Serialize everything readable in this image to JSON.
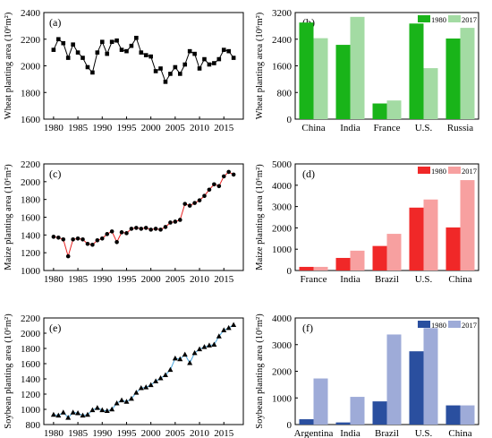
{
  "chart_data": [
    {
      "type": "line",
      "panel_label": "(a)",
      "ylabel": "Wheat planting area (10⁶m²)",
      "xlim": [
        1978,
        2019
      ],
      "ylim": [
        1600,
        2400
      ],
      "xticks": [
        "1980",
        "1985",
        "1990",
        "1995",
        "2000",
        "2005",
        "2010",
        "2015"
      ],
      "yticks": [
        "1600",
        "1800",
        "2000",
        "2200",
        "2400"
      ],
      "line_color": "#000000",
      "marker": "square",
      "marker_color": "#000000",
      "x": [
        1980,
        1981,
        1982,
        1983,
        1984,
        1985,
        1986,
        1987,
        1988,
        1989,
        1990,
        1991,
        1992,
        1993,
        1994,
        1995,
        1996,
        1997,
        1998,
        1999,
        2000,
        2001,
        2002,
        2003,
        2004,
        2005,
        2006,
        2007,
        2008,
        2009,
        2010,
        2011,
        2012,
        2013,
        2014,
        2015,
        2016,
        2017
      ],
      "y": [
        2120,
        2200,
        2170,
        2060,
        2160,
        2100,
        2060,
        1990,
        1950,
        2100,
        2180,
        2090,
        2180,
        2190,
        2120,
        2110,
        2150,
        2210,
        2100,
        2080,
        2070,
        1960,
        1980,
        1880,
        1940,
        1990,
        1940,
        2010,
        2110,
        2090,
        1980,
        2050,
        2010,
        2020,
        2050,
        2120,
        2110,
        2060
      ]
    },
    {
      "type": "bar",
      "panel_label": "(b)",
      "ylabel": "Wheat planting area (10⁶m²)",
      "categories": [
        "China",
        "India",
        "France",
        "U.S.",
        "Russia"
      ],
      "ylim": [
        0,
        3200
      ],
      "yticks": [
        "0",
        "800",
        "1600",
        "2400",
        "3200"
      ],
      "legend_position": "top-right",
      "series": [
        {
          "name": "1980",
          "color": "#19b419",
          "values": [
            2900,
            2230,
            470,
            2870,
            2420
          ]
        },
        {
          "name": "2017",
          "color": "#a3dba3",
          "values": [
            2430,
            3070,
            560,
            1530,
            2740
          ]
        }
      ]
    },
    {
      "type": "line",
      "panel_label": "(c)",
      "ylabel": "Maize planting area (10⁶m²)",
      "xlim": [
        1978,
        2019
      ],
      "ylim": [
        1000,
        2200
      ],
      "xticks": [
        "1980",
        "1985",
        "1990",
        "1995",
        "2000",
        "2005",
        "2010",
        "2015"
      ],
      "yticks": [
        "1000",
        "1200",
        "1400",
        "1600",
        "1800",
        "2000",
        "2200"
      ],
      "line_color": "#e82020",
      "marker": "circle",
      "marker_color": "#000000",
      "x": [
        1980,
        1981,
        1982,
        1983,
        1984,
        1985,
        1986,
        1987,
        1988,
        1989,
        1990,
        1991,
        1992,
        1993,
        1994,
        1995,
        1996,
        1997,
        1998,
        1999,
        2000,
        2001,
        2002,
        2003,
        2004,
        2005,
        2006,
        2007,
        2008,
        2009,
        2010,
        2011,
        2012,
        2013,
        2014,
        2015,
        2016,
        2017
      ],
      "y": [
        1380,
        1370,
        1350,
        1160,
        1350,
        1360,
        1350,
        1300,
        1290,
        1340,
        1360,
        1410,
        1440,
        1320,
        1430,
        1420,
        1470,
        1480,
        1470,
        1480,
        1460,
        1470,
        1460,
        1490,
        1540,
        1550,
        1570,
        1750,
        1730,
        1760,
        1790,
        1840,
        1910,
        1970,
        1950,
        2060,
        2110,
        2080
      ]
    },
    {
      "type": "bar",
      "panel_label": "(d)",
      "ylabel": "Maize planting area (10⁶m²)",
      "categories": [
        "France",
        "India",
        "Brazil",
        "U.S.",
        "China"
      ],
      "ylim": [
        0,
        5000
      ],
      "yticks": [
        "0",
        "1000",
        "2000",
        "3000",
        "4000",
        "5000"
      ],
      "legend_position": "top-right",
      "series": [
        {
          "name": "1980",
          "color": "#f02828",
          "values": [
            170,
            590,
            1150,
            2950,
            2020
          ]
        },
        {
          "name": "2017",
          "color": "#f7a0a0",
          "values": [
            170,
            930,
            1720,
            3330,
            4240
          ]
        }
      ]
    },
    {
      "type": "line",
      "panel_label": "(e)",
      "ylabel": "Soybean planting area (10⁶m²)",
      "xlim": [
        1978,
        2019
      ],
      "ylim": [
        800,
        2200
      ],
      "xticks": [
        "1980",
        "1985",
        "1990",
        "1995",
        "2000",
        "2005",
        "2010",
        "2015"
      ],
      "yticks": [
        "800",
        "1000",
        "1200",
        "1400",
        "1600",
        "1800",
        "2000",
        "2200"
      ],
      "line_color": "#4aa8e0",
      "marker": "triangle",
      "marker_color": "#000000",
      "x": [
        1980,
        1981,
        1982,
        1983,
        1984,
        1985,
        1986,
        1987,
        1988,
        1989,
        1990,
        1991,
        1992,
        1993,
        1994,
        1995,
        1996,
        1997,
        1998,
        1999,
        2000,
        2001,
        2002,
        2003,
        2004,
        2005,
        2006,
        2007,
        2008,
        2009,
        2010,
        2011,
        2012,
        2013,
        2014,
        2015,
        2016,
        2017
      ],
      "y": [
        930,
        920,
        960,
        890,
        960,
        950,
        920,
        930,
        990,
        1020,
        990,
        980,
        1000,
        1080,
        1120,
        1100,
        1140,
        1220,
        1280,
        1290,
        1320,
        1370,
        1410,
        1450,
        1520,
        1670,
        1660,
        1720,
        1610,
        1740,
        1790,
        1820,
        1840,
        1850,
        1960,
        2040,
        2070,
        2110
      ]
    },
    {
      "type": "bar",
      "panel_label": "(f)",
      "ylabel": "Soybean planting area (10⁶m²)",
      "categories": [
        "Argentina",
        "India",
        "Brazil",
        "U.S.",
        "China"
      ],
      "ylim": [
        0,
        4000
      ],
      "yticks": [
        "0",
        "1000",
        "2000",
        "3000",
        "4000"
      ],
      "legend_position": "top-right",
      "series": [
        {
          "name": "1980",
          "color": "#2a4f9f",
          "values": [
            200,
            80,
            870,
            2750,
            720
          ]
        },
        {
          "name": "2017",
          "color": "#9eabd8",
          "values": [
            1730,
            1040,
            3380,
            3620,
            720
          ]
        }
      ]
    }
  ]
}
